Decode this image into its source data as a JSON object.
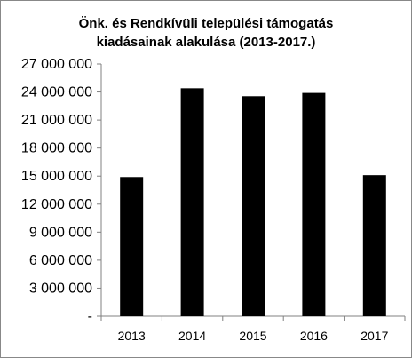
{
  "chart_data": {
    "type": "bar",
    "title_lines": [
      "Önk. és Rendkívüli települési támogatás",
      "kiadásainak alakulása (2013-2017.)"
    ],
    "xlabel": "",
    "ylabel": "",
    "categories": [
      "2013",
      "2014",
      "2015",
      "2016",
      "2017"
    ],
    "values": [
      14900000,
      24400000,
      23550000,
      23900000,
      15100000
    ],
    "ylim": [
      0,
      27000000
    ],
    "yticks": [
      0,
      3000000,
      6000000,
      9000000,
      12000000,
      15000000,
      18000000,
      21000000,
      24000000,
      27000000
    ],
    "ytick_labels": [
      "-",
      "3 000 000",
      "6 000 000",
      "9 000 000",
      "12 000 000",
      "15 000 000",
      "18 000 000",
      "21 000 000",
      "24 000 000",
      "27 000 000"
    ],
    "grid": false,
    "legend": "none",
    "bar_color": "#000000",
    "axis_color": "#808080"
  }
}
